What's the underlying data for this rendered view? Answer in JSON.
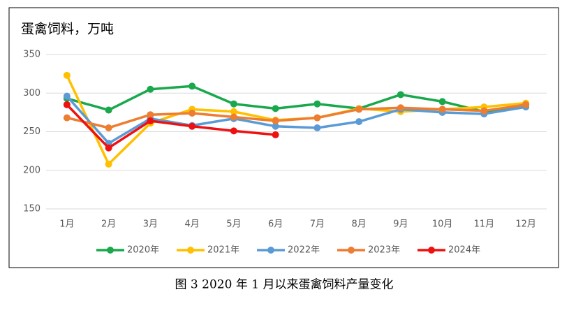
{
  "chart_data": {
    "type": "line",
    "title": "蛋禽饲料，万吨",
    "categories": [
      "1月",
      "2月",
      "3月",
      "4月",
      "5月",
      "6月",
      "7月",
      "8月",
      "9月",
      "10月",
      "11月",
      "12月"
    ],
    "series": [
      {
        "name": "2020年",
        "color": "#1aa84d",
        "values": [
          293,
          278,
          305,
          309,
          286,
          280,
          286,
          280,
          298,
          289,
          276,
          285
        ]
      },
      {
        "name": "2021年",
        "color": "#ffc000",
        "values": [
          323,
          208,
          261,
          279,
          276,
          265,
          268,
          280,
          276,
          279,
          282,
          287
        ]
      },
      {
        "name": "2022年",
        "color": "#5b9bd5",
        "values": [
          296,
          235,
          267,
          258,
          267,
          257,
          255,
          263,
          279,
          275,
          273,
          282
        ]
      },
      {
        "name": "2023年",
        "color": "#ed7d31",
        "values": [
          268,
          255,
          272,
          274,
          269,
          264,
          268,
          279,
          281,
          279,
          277,
          285
        ]
      },
      {
        "name": "2024年",
        "color": "#ee1111",
        "values": [
          285,
          229,
          264,
          257,
          251,
          246,
          null,
          null,
          null,
          null,
          null,
          null
        ]
      }
    ],
    "ylim": [
      150,
      350
    ],
    "yticks": [
      150,
      200,
      250,
      300,
      350
    ],
    "grid": true,
    "legend": "bottom"
  },
  "caption": "图 3  2020 年 1 月以来蛋禽饲料产量变化"
}
